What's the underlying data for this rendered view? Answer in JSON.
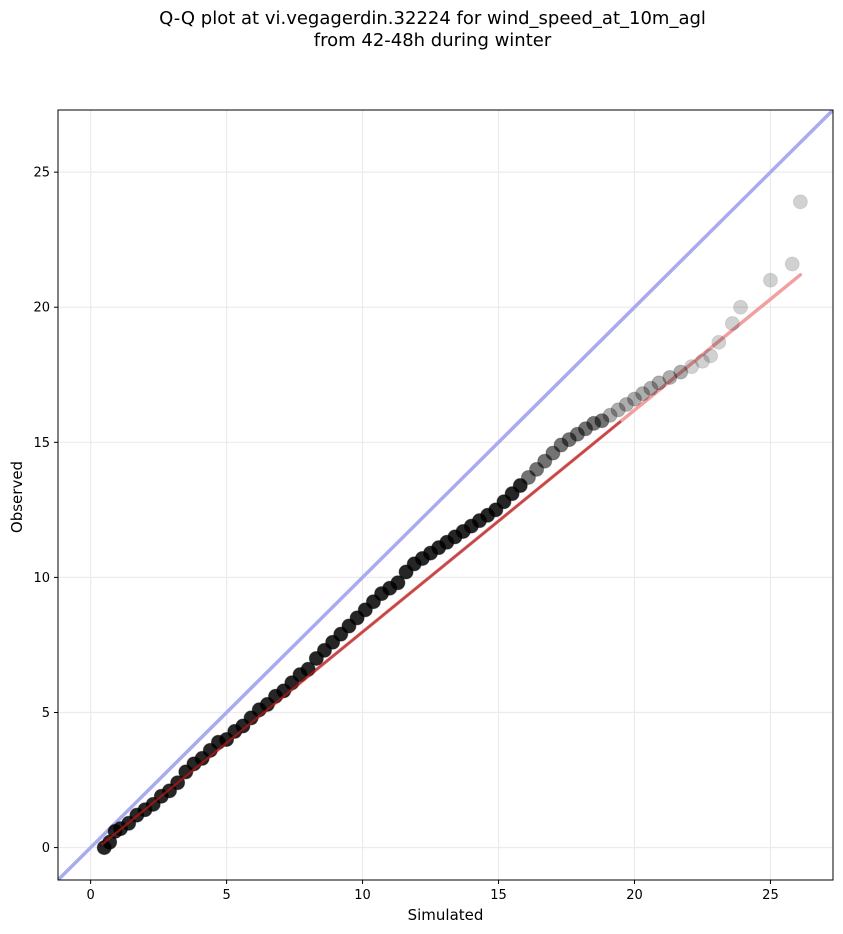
{
  "chart_data": {
    "type": "scatter",
    "title": "Q-Q plot at vi.vegagerdin.32224 for wind_speed_at_10m_agl",
    "subtitle": "from 42-48h during winter",
    "xlabel": "Simulated",
    "ylabel": "Observed",
    "xlim": [
      -1.2,
      27.3
    ],
    "ylim": [
      -1.2,
      27.3
    ],
    "xticks": [
      0,
      5,
      10,
      15,
      20,
      25
    ],
    "yticks": [
      0,
      5,
      10,
      15,
      20,
      25
    ],
    "grid": true,
    "colors": {
      "points": "#000000",
      "identity_line": "#aaaaf0",
      "fit_line": "#f0a0a0",
      "fit_line_dense": "#b02020",
      "grid": "#ebebeb"
    },
    "identity_line": {
      "x": [
        -1.2,
        27.3
      ],
      "y": [
        -1.2,
        27.3
      ]
    },
    "fit_line": {
      "x": [
        0.4,
        26.1
      ],
      "y": [
        0.1,
        21.2
      ]
    },
    "points": {
      "x": [
        0.5,
        0.7,
        0.9,
        1.1,
        1.4,
        1.7,
        2.0,
        2.3,
        2.6,
        2.9,
        3.2,
        3.5,
        3.8,
        4.1,
        4.4,
        4.7,
        5.0,
        5.3,
        5.6,
        5.9,
        6.2,
        6.5,
        6.8,
        7.1,
        7.4,
        7.7,
        8.0,
        8.3,
        8.6,
        8.9,
        9.2,
        9.5,
        9.8,
        10.1,
        10.4,
        10.7,
        11.0,
        11.3,
        11.6,
        11.9,
        12.2,
        12.5,
        12.8,
        13.1,
        13.4,
        13.7,
        14.0,
        14.3,
        14.6,
        14.9,
        15.2,
        15.5,
        15.8,
        16.1,
        16.4,
        16.7,
        17.0,
        17.3,
        17.6,
        17.9,
        18.2,
        18.5,
        18.8,
        19.1,
        19.4,
        19.7,
        20.0,
        20.3,
        20.6,
        20.9,
        21.3,
        21.7,
        22.1,
        22.5,
        22.8,
        23.1,
        23.6,
        23.9,
        25.0,
        25.8,
        26.1
      ],
      "y": [
        0.0,
        0.2,
        0.6,
        0.7,
        0.9,
        1.2,
        1.4,
        1.6,
        1.9,
        2.1,
        2.4,
        2.8,
        3.1,
        3.3,
        3.6,
        3.9,
        4.0,
        4.3,
        4.5,
        4.8,
        5.1,
        5.3,
        5.6,
        5.8,
        6.1,
        6.4,
        6.6,
        7.0,
        7.3,
        7.6,
        7.9,
        8.2,
        8.5,
        8.8,
        9.1,
        9.4,
        9.6,
        9.8,
        10.2,
        10.5,
        10.7,
        10.9,
        11.1,
        11.3,
        11.5,
        11.7,
        11.9,
        12.1,
        12.3,
        12.5,
        12.8,
        13.1,
        13.4,
        13.7,
        14.0,
        14.3,
        14.6,
        14.9,
        15.1,
        15.3,
        15.5,
        15.7,
        15.8,
        16.0,
        16.2,
        16.4,
        16.6,
        16.8,
        17.0,
        17.2,
        17.4,
        17.6,
        17.8,
        18.0,
        18.2,
        18.7,
        19.4,
        20.0,
        21.0,
        21.6,
        23.9
      ]
    }
  }
}
